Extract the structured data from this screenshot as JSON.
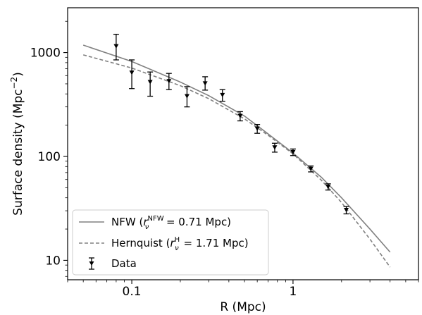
{
  "chart_data": {
    "type": "scatter",
    "title": "",
    "xlabel": "R (Mpc)",
    "ylabel": "Surface density (Mpc",
    "ylabel_sup": "−2",
    "ylabel_tail": ")",
    "xscale": "log",
    "yscale": "log",
    "xlim": [
      0.04,
      6
    ],
    "ylim": [
      6.5,
      2700
    ],
    "grid": false,
    "legend_position": "lower-left",
    "x_ticks": [
      {
        "value": 0.1,
        "label": "0.1"
      },
      {
        "value": 1,
        "label": "1"
      }
    ],
    "y_ticks": [
      {
        "value": 10,
        "label": "10"
      },
      {
        "value": 100,
        "label": "100"
      },
      {
        "value": 1000,
        "label": "1000"
      }
    ],
    "series": [
      {
        "name": "Data",
        "kind": "errorbar",
        "color": "#000000",
        "marker": "triangle-down",
        "x": [
          0.08,
          0.1,
          0.13,
          0.17,
          0.22,
          0.285,
          0.365,
          0.47,
          0.6,
          0.77,
          1.0,
          1.29,
          1.65,
          2.14
        ],
        "y": [
          1150,
          640,
          520,
          530,
          380,
          505,
          390,
          245,
          185,
          122,
          110,
          76,
          51,
          30.5
        ],
        "err_low": [
          300,
          190,
          140,
          90,
          80,
          70,
          50,
          25,
          18,
          12,
          8,
          5,
          3.5,
          2.5
        ],
        "err_high": [
          350,
          210,
          130,
          100,
          90,
          80,
          50,
          25,
          18,
          12,
          8,
          5,
          3.5,
          2.5
        ]
      },
      {
        "name": "NFW",
        "label_prefix": "NFW (",
        "label_rsym": "r",
        "label_sub": "ν",
        "label_sup": "NFW",
        "label_value": " = 0.71 Mpc)",
        "kind": "line",
        "style": "solid",
        "color": "#808080",
        "x": [
          0.05,
          0.1,
          0.2,
          0.3,
          0.5,
          0.7,
          1.0,
          1.5,
          2.0,
          3.0,
          4.0
        ],
        "y": [
          1180,
          820,
          520,
          385,
          245,
          165,
          108,
          63,
          40,
          20,
          12
        ]
      },
      {
        "name": "Hernquist",
        "label_prefix": "Hernquist (",
        "label_rsym": "r",
        "label_sub": "ν",
        "label_sup": "H",
        "label_value": " = 1.71 Mpc)",
        "kind": "line",
        "style": "dashed",
        "color": "#808080",
        "x": [
          0.05,
          0.1,
          0.2,
          0.3,
          0.5,
          0.7,
          1.0,
          1.5,
          2.0,
          3.0,
          4.0
        ],
        "y": [
          950,
          710,
          480,
          360,
          230,
          160,
          106,
          59,
          36,
          16,
          8.6
        ]
      }
    ]
  }
}
